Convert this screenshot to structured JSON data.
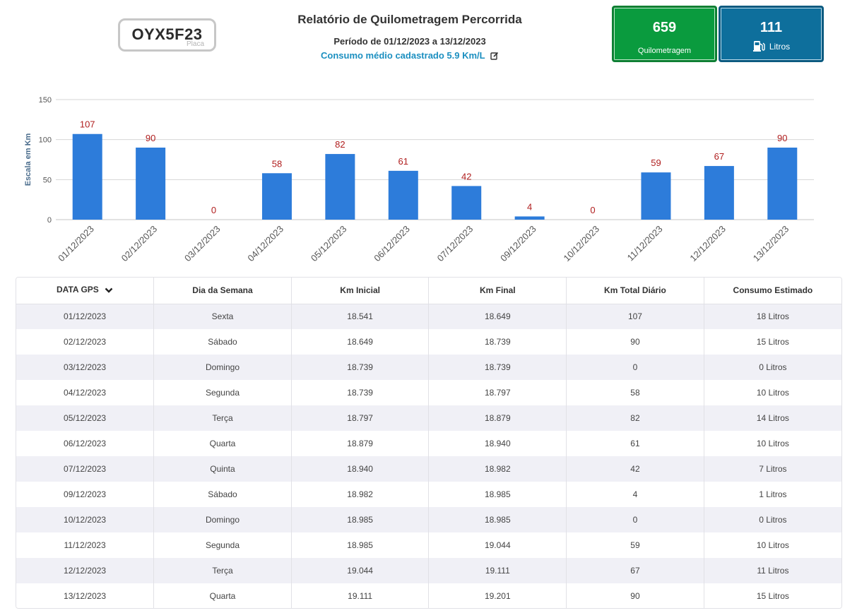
{
  "header": {
    "plate": "OYX5F23",
    "plate_caption": "Placa",
    "title": "Relatório de Quilometragem Percorrida",
    "period": "Período de 01/12/2023 a 13/12/2023",
    "consumo": "Consumo médio cadastrado 5.9 Km/L",
    "edit_icon": "edit-icon"
  },
  "cards": {
    "km_value": "659",
    "km_label": "Quilometragem",
    "liters_value": "111",
    "liters_label": "Litros",
    "liters_icon": "fuel-pump-icon",
    "colors": {
      "km": "#0a9b3e",
      "liters": "#0e6f9c"
    }
  },
  "chart_data": {
    "type": "bar",
    "title": "",
    "xlabel": "",
    "ylabel": "Escala em Km",
    "ylim": [
      0,
      150
    ],
    "yticks": [
      0,
      50,
      100,
      150
    ],
    "grid": true,
    "bar_color": "#2d7cda",
    "label_color": "#b01e1e",
    "categories": [
      "01/12/2023",
      "02/12/2023",
      "03/12/2023",
      "04/12/2023",
      "05/12/2023",
      "06/12/2023",
      "07/12/2023",
      "09/12/2023",
      "10/12/2023",
      "11/12/2023",
      "12/12/2023",
      "13/12/2023"
    ],
    "values": [
      107,
      90,
      0,
      58,
      82,
      61,
      42,
      4,
      0,
      59,
      67,
      90
    ]
  },
  "table": {
    "headers": [
      "DATA GPS",
      "Dia da Semana",
      "Km Inicial",
      "Km Final",
      "Km Total Diário",
      "Consumo Estimado"
    ],
    "sort_icon": "chevron-down-icon",
    "rows": [
      [
        "01/12/2023",
        "Sexta",
        "18.541",
        "18.649",
        "107",
        "18 Litros"
      ],
      [
        "02/12/2023",
        "Sábado",
        "18.649",
        "18.739",
        "90",
        "15 Litros"
      ],
      [
        "03/12/2023",
        "Domingo",
        "18.739",
        "18.739",
        "0",
        "0 Litros"
      ],
      [
        "04/12/2023",
        "Segunda",
        "18.739",
        "18.797",
        "58",
        "10 Litros"
      ],
      [
        "05/12/2023",
        "Terça",
        "18.797",
        "18.879",
        "82",
        "14 Litros"
      ],
      [
        "06/12/2023",
        "Quarta",
        "18.879",
        "18.940",
        "61",
        "10 Litros"
      ],
      [
        "07/12/2023",
        "Quinta",
        "18.940",
        "18.982",
        "42",
        "7 Litros"
      ],
      [
        "09/12/2023",
        "Sábado",
        "18.982",
        "18.985",
        "4",
        "1 Litros"
      ],
      [
        "10/12/2023",
        "Domingo",
        "18.985",
        "18.985",
        "0",
        "0 Litros"
      ],
      [
        "11/12/2023",
        "Segunda",
        "18.985",
        "19.044",
        "59",
        "10 Litros"
      ],
      [
        "12/12/2023",
        "Terça",
        "19.044",
        "19.111",
        "67",
        "11 Litros"
      ],
      [
        "13/12/2023",
        "Quarta",
        "19.111",
        "19.201",
        "90",
        "15 Litros"
      ]
    ]
  }
}
